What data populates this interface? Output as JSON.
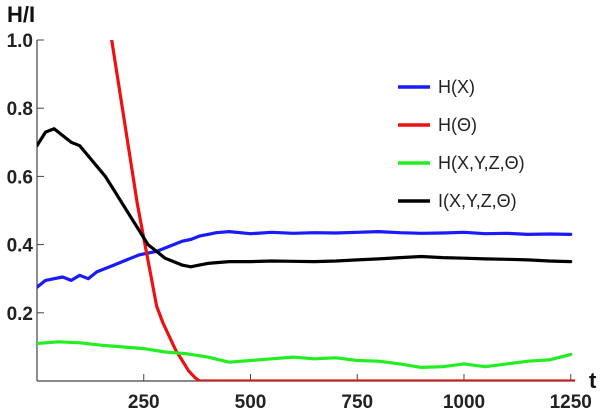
{
  "chart_data": {
    "type": "line",
    "title": "",
    "xlabel": "t",
    "ylabel": "H/I",
    "xlim": [
      0,
      1260
    ],
    "ylim": [
      0,
      1.0
    ],
    "x_ticks": [
      250,
      500,
      750,
      1000,
      1250
    ],
    "y_ticks": [
      0.2,
      0.4,
      0.6,
      0.8,
      1.0
    ],
    "x_tick_labels": [
      "250",
      "500",
      "750",
      "1000",
      "1250"
    ],
    "y_tick_labels": [
      "0.2",
      "0.4",
      "0.6",
      "0.8",
      "1.0"
    ],
    "grid": false,
    "legend_position": "right",
    "series": [
      {
        "name": "H(X)",
        "color": "#1a1aff",
        "x": [
          0,
          20,
          40,
          60,
          80,
          100,
          120,
          140,
          160,
          180,
          200,
          220,
          240,
          260,
          280,
          300,
          320,
          340,
          360,
          380,
          400,
          420,
          450,
          500,
          550,
          600,
          650,
          700,
          750,
          800,
          850,
          900,
          950,
          1000,
          1050,
          1100,
          1150,
          1200,
          1250
        ],
        "y": [
          0.275,
          0.295,
          0.3,
          0.305,
          0.295,
          0.31,
          0.3,
          0.32,
          0.33,
          0.34,
          0.35,
          0.36,
          0.37,
          0.375,
          0.38,
          0.39,
          0.4,
          0.41,
          0.415,
          0.425,
          0.43,
          0.435,
          0.438,
          0.432,
          0.436,
          0.433,
          0.435,
          0.434,
          0.436,
          0.438,
          0.435,
          0.433,
          0.434,
          0.436,
          0.432,
          0.433,
          0.43,
          0.431,
          0.43
        ]
      },
      {
        "name": "H(Θ)",
        "color": "#ee1111",
        "x": [
          175,
          190,
          205,
          220,
          235,
          250,
          265,
          280,
          295,
          310,
          325,
          340,
          355,
          370,
          380,
          1260
        ],
        "y": [
          1.0,
          0.88,
          0.76,
          0.64,
          0.52,
          0.42,
          0.32,
          0.22,
          0.17,
          0.13,
          0.09,
          0.06,
          0.03,
          0.01,
          0.0,
          0.0
        ]
      },
      {
        "name": "H(X,Y,Z,Θ)",
        "color": "#22ee22",
        "x": [
          0,
          50,
          100,
          150,
          200,
          250,
          300,
          350,
          400,
          450,
          500,
          550,
          600,
          650,
          700,
          750,
          800,
          850,
          900,
          950,
          1000,
          1050,
          1100,
          1150,
          1200,
          1250
        ],
        "y": [
          0.11,
          0.115,
          0.112,
          0.105,
          0.1,
          0.095,
          0.085,
          0.08,
          0.07,
          0.055,
          0.06,
          0.065,
          0.07,
          0.065,
          0.068,
          0.06,
          0.058,
          0.05,
          0.04,
          0.042,
          0.05,
          0.042,
          0.05,
          0.058,
          0.062,
          0.078
        ]
      },
      {
        "name": "I(X,Y,Z,Θ)",
        "color": "#000000",
        "x": [
          0,
          20,
          40,
          60,
          80,
          100,
          120,
          140,
          160,
          180,
          200,
          220,
          240,
          260,
          280,
          300,
          320,
          340,
          360,
          380,
          400,
          450,
          500,
          550,
          600,
          650,
          700,
          750,
          800,
          850,
          900,
          950,
          1000,
          1050,
          1100,
          1150,
          1200,
          1250
        ],
        "y": [
          0.69,
          0.73,
          0.74,
          0.72,
          0.7,
          0.69,
          0.66,
          0.63,
          0.6,
          0.56,
          0.52,
          0.48,
          0.44,
          0.4,
          0.38,
          0.36,
          0.35,
          0.34,
          0.335,
          0.34,
          0.345,
          0.35,
          0.35,
          0.352,
          0.351,
          0.35,
          0.352,
          0.355,
          0.358,
          0.362,
          0.365,
          0.362,
          0.36,
          0.358,
          0.357,
          0.355,
          0.352,
          0.35
        ]
      }
    ]
  }
}
